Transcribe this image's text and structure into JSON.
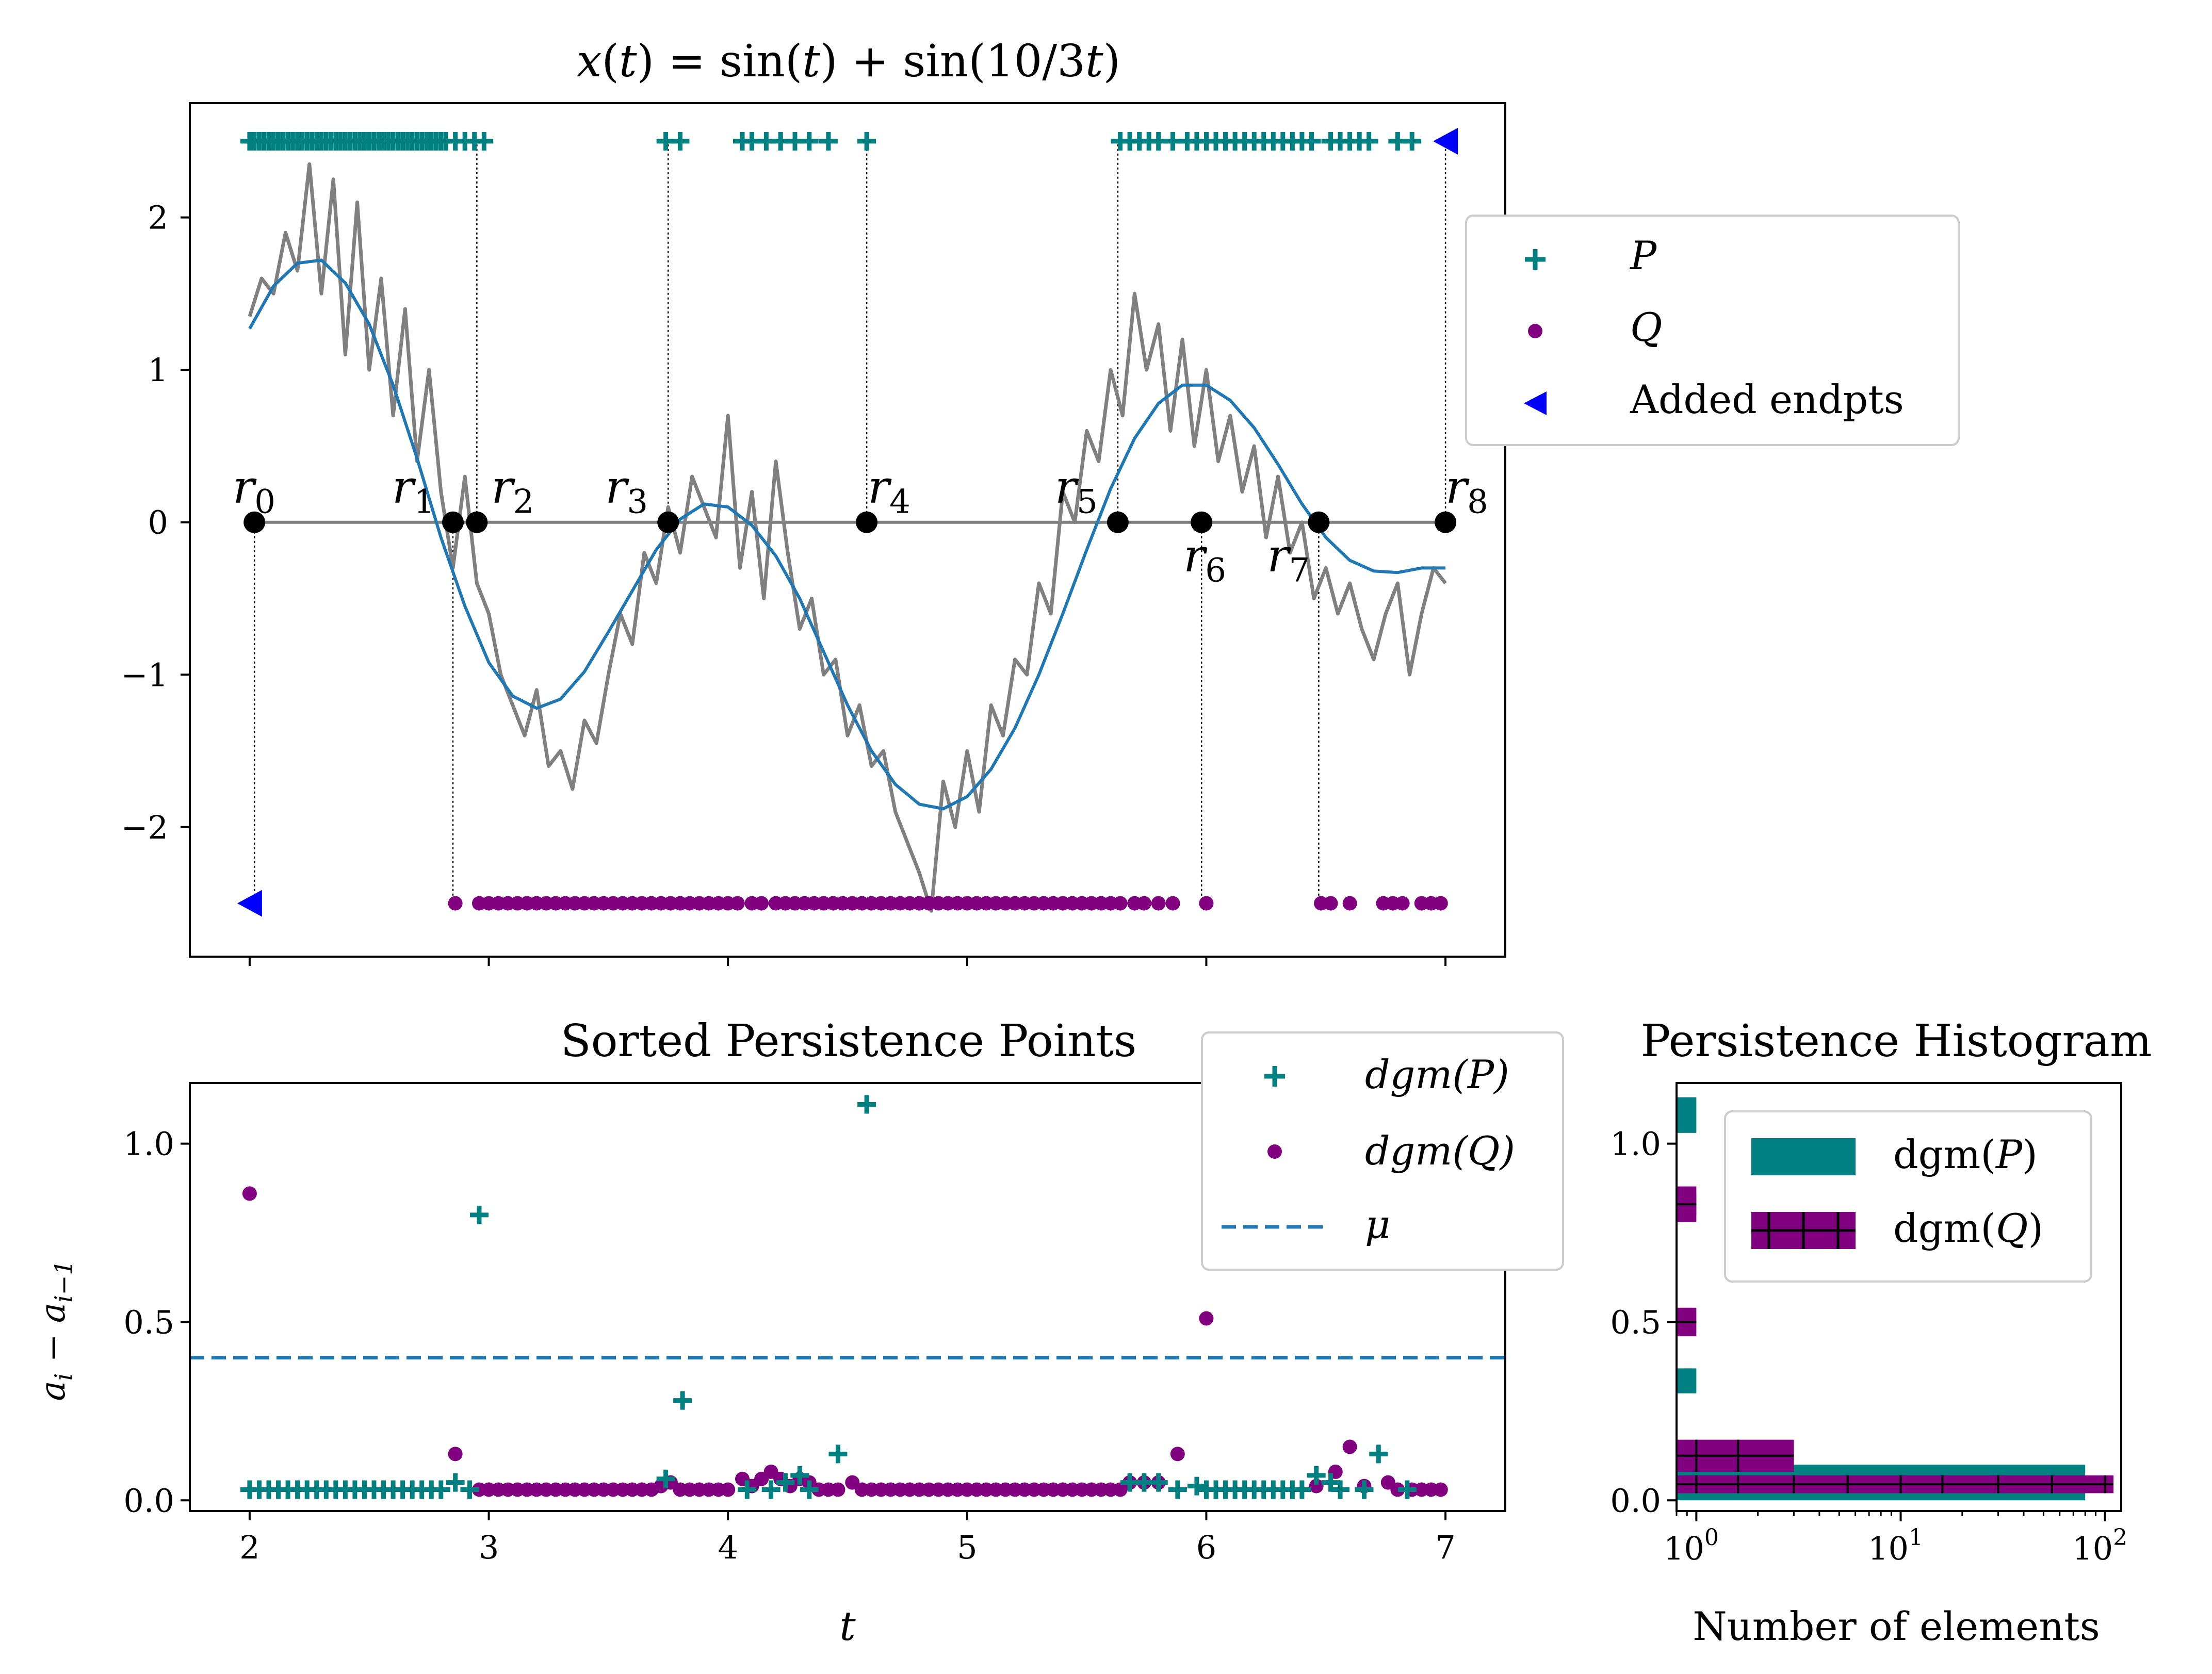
{
  "chart_data": [
    {
      "type": "line",
      "title": "x(t) = sin(t) + sin(10/3t)",
      "xlabel": "",
      "ylabel": "",
      "xlim": [
        1.75,
        7.25
      ],
      "ylim": [
        -2.85,
        2.75
      ],
      "x_ticks": [
        2,
        3,
        4,
        5,
        6,
        7
      ],
      "y_ticks": [
        -2,
        -1,
        0,
        1,
        2
      ],
      "y_tick_labels": [
        "−2",
        "−1",
        "0",
        "1",
        "2"
      ],
      "colors": {
        "smooth": "#1f77b4",
        "noisy": "#808080",
        "P": "#008080",
        "Q": "#800080",
        "endpts": "#0000ff",
        "r_points": "#000000"
      },
      "series": [
        {
          "name": "smooth",
          "x": [
            2.0,
            2.1,
            2.2,
            2.3,
            2.4,
            2.5,
            2.6,
            2.7,
            2.8,
            2.9,
            3.0,
            3.1,
            3.2,
            3.3,
            3.4,
            3.5,
            3.6,
            3.7,
            3.8,
            3.9,
            4.0,
            4.1,
            4.2,
            4.3,
            4.4,
            4.5,
            4.6,
            4.7,
            4.8,
            4.9,
            5.0,
            5.1,
            5.2,
            5.3,
            5.4,
            5.5,
            5.6,
            5.7,
            5.8,
            5.9,
            6.0,
            6.1,
            6.2,
            6.3,
            6.4,
            6.5,
            6.6,
            6.7,
            6.8,
            6.9,
            7.0
          ],
          "y": [
            1.27,
            1.55,
            1.7,
            1.72,
            1.57,
            1.3,
            0.9,
            0.42,
            -0.1,
            -0.55,
            -0.92,
            -1.14,
            -1.22,
            -1.16,
            -0.98,
            -0.72,
            -0.45,
            -0.18,
            0.02,
            0.12,
            0.1,
            -0.02,
            -0.22,
            -0.5,
            -0.85,
            -1.2,
            -1.5,
            -1.72,
            -1.85,
            -1.88,
            -1.8,
            -1.62,
            -1.35,
            -1.0,
            -0.6,
            -0.18,
            0.22,
            0.55,
            0.78,
            0.9,
            0.9,
            0.8,
            0.62,
            0.38,
            0.12,
            -0.1,
            -0.25,
            -0.32,
            -0.33,
            -0.3,
            -0.3
          ]
        },
        {
          "name": "noisy",
          "x": [
            2.0,
            2.05,
            2.1,
            2.15,
            2.2,
            2.25,
            2.3,
            2.35,
            2.4,
            2.45,
            2.5,
            2.55,
            2.6,
            2.65,
            2.7,
            2.75,
            2.8,
            2.85,
            2.9,
            2.95,
            3.0,
            3.05,
            3.1,
            3.15,
            3.2,
            3.25,
            3.3,
            3.35,
            3.4,
            3.45,
            3.5,
            3.55,
            3.6,
            3.65,
            3.7,
            3.75,
            3.8,
            3.85,
            3.9,
            3.95,
            4.0,
            4.05,
            4.1,
            4.15,
            4.2,
            4.25,
            4.3,
            4.35,
            4.4,
            4.45,
            4.5,
            4.55,
            4.6,
            4.65,
            4.7,
            4.75,
            4.8,
            4.85,
            4.9,
            4.95,
            5.0,
            5.05,
            5.1,
            5.15,
            5.2,
            5.25,
            5.3,
            5.35,
            5.4,
            5.45,
            5.5,
            5.55,
            5.6,
            5.65,
            5.7,
            5.75,
            5.8,
            5.85,
            5.9,
            5.95,
            6.0,
            6.05,
            6.1,
            6.15,
            6.2,
            6.25,
            6.3,
            6.35,
            6.4,
            6.45,
            6.5,
            6.55,
            6.6,
            6.65,
            6.7,
            6.75,
            6.8,
            6.85,
            6.9,
            6.95,
            7.0
          ],
          "y": [
            1.35,
            1.6,
            1.5,
            1.9,
            1.65,
            2.35,
            1.5,
            2.25,
            1.1,
            2.1,
            1.0,
            1.6,
            0.7,
            1.4,
            0.4,
            1.0,
            0.2,
            -0.3,
            0.3,
            -0.4,
            -0.6,
            -1.0,
            -1.2,
            -1.4,
            -1.1,
            -1.6,
            -1.5,
            -1.75,
            -1.3,
            -1.45,
            -1.0,
            -0.6,
            -0.8,
            -0.2,
            -0.4,
            0.1,
            -0.2,
            0.3,
            0.1,
            -0.1,
            0.7,
            -0.3,
            0.2,
            -0.5,
            0.4,
            -0.2,
            -0.7,
            -0.5,
            -1.0,
            -0.9,
            -1.4,
            -1.2,
            -1.6,
            -1.5,
            -1.9,
            -2.1,
            -2.3,
            -2.55,
            -1.7,
            -2.0,
            -1.5,
            -1.9,
            -1.2,
            -1.4,
            -0.9,
            -1.0,
            -0.4,
            -0.6,
            0.2,
            0.0,
            0.6,
            0.4,
            1.0,
            0.7,
            1.5,
            1.0,
            1.3,
            0.6,
            1.2,
            0.5,
            1.0,
            0.4,
            0.7,
            0.2,
            0.5,
            -0.1,
            0.3,
            -0.2,
            0.0,
            -0.5,
            -0.3,
            -0.6,
            -0.4,
            -0.7,
            -0.9,
            -0.6,
            -0.4,
            -1.0,
            -0.6,
            -0.3,
            -0.4
          ]
        }
      ],
      "P_x": [
        2.0,
        2.02,
        2.04,
        2.06,
        2.08,
        2.1,
        2.12,
        2.14,
        2.16,
        2.18,
        2.2,
        2.22,
        2.24,
        2.26,
        2.28,
        2.3,
        2.32,
        2.34,
        2.36,
        2.38,
        2.4,
        2.42,
        2.44,
        2.46,
        2.48,
        2.5,
        2.52,
        2.54,
        2.56,
        2.58,
        2.6,
        2.62,
        2.64,
        2.66,
        2.68,
        2.7,
        2.72,
        2.74,
        2.76,
        2.78,
        2.8,
        2.82,
        2.86,
        2.9,
        2.94,
        2.98,
        3.74,
        3.8,
        4.06,
        4.1,
        4.16,
        4.22,
        4.28,
        4.34,
        4.42,
        4.58,
        5.64,
        5.68,
        5.72,
        5.76,
        5.8,
        5.86,
        5.92,
        5.96,
        6.0,
        6.04,
        6.08,
        6.12,
        6.16,
        6.2,
        6.24,
        6.28,
        6.32,
        6.36,
        6.4,
        6.44,
        6.52,
        6.56,
        6.6,
        6.64,
        6.68,
        6.8,
        6.86
      ],
      "P_level": 2.5,
      "Q_x": [
        2.86,
        2.96,
        3.0,
        3.04,
        3.08,
        3.12,
        3.16,
        3.2,
        3.24,
        3.28,
        3.32,
        3.36,
        3.4,
        3.44,
        3.48,
        3.52,
        3.56,
        3.6,
        3.64,
        3.68,
        3.72,
        3.76,
        3.8,
        3.84,
        3.88,
        3.92,
        3.96,
        4.0,
        4.04,
        4.1,
        4.14,
        4.2,
        4.24,
        4.28,
        4.32,
        4.36,
        4.4,
        4.44,
        4.48,
        4.52,
        4.56,
        4.6,
        4.64,
        4.68,
        4.72,
        4.76,
        4.8,
        4.84,
        4.88,
        4.92,
        4.96,
        5.0,
        5.04,
        5.08,
        5.12,
        5.16,
        5.2,
        5.24,
        5.28,
        5.32,
        5.36,
        5.4,
        5.44,
        5.48,
        5.52,
        5.56,
        5.6,
        5.64,
        5.7,
        5.74,
        5.8,
        5.86,
        6.0,
        6.48,
        6.52,
        6.6,
        6.74,
        6.78,
        6.82,
        6.9,
        6.94,
        6.98
      ],
      "Q_level": -2.5,
      "endpts": [
        [
          2.0,
          -2.5
        ],
        [
          7.0,
          2.5
        ]
      ],
      "r_points": {
        "x": [
          2.02,
          2.85,
          2.95,
          3.75,
          4.58,
          5.63,
          5.98,
          6.47,
          7.0
        ],
        "labels": [
          "r0",
          "r1",
          "r2",
          "r3",
          "r4",
          "r5",
          "r6",
          "r7",
          "r8"
        ]
      },
      "legend": {
        "placement": "outside-right",
        "entries": [
          "P",
          "Q",
          "Added endpts"
        ]
      }
    },
    {
      "type": "scatter",
      "title": "Sorted Persistence Points",
      "xlabel": "t",
      "ylabel": "a_i − a_{i−1}",
      "xlim": [
        1.75,
        7.25
      ],
      "ylim": [
        -0.03,
        1.17
      ],
      "x_ticks": [
        2,
        3,
        4,
        5,
        6,
        7
      ],
      "y_ticks": [
        0.0,
        0.5,
        1.0
      ],
      "y_tick_labels": [
        "0.0",
        "0.5",
        "1.0"
      ],
      "mu": 0.4,
      "dgmP": {
        "x": [
          2.0,
          2.04,
          2.08,
          2.12,
          2.16,
          2.2,
          2.24,
          2.28,
          2.32,
          2.36,
          2.4,
          2.44,
          2.48,
          2.52,
          2.56,
          2.6,
          2.64,
          2.68,
          2.72,
          2.76,
          2.8,
          2.86,
          2.92,
          2.96,
          3.74,
          3.81,
          4.08,
          4.18,
          4.24,
          4.3,
          4.34,
          4.46,
          4.58,
          5.68,
          5.74,
          5.8,
          5.88,
          5.96,
          6.0,
          6.04,
          6.08,
          6.12,
          6.16,
          6.2,
          6.24,
          6.28,
          6.32,
          6.36,
          6.4,
          6.46,
          6.52,
          6.56,
          6.66,
          6.72,
          6.84
        ],
        "y": [
          0.03,
          0.03,
          0.03,
          0.03,
          0.03,
          0.03,
          0.03,
          0.03,
          0.03,
          0.03,
          0.03,
          0.03,
          0.03,
          0.03,
          0.03,
          0.03,
          0.03,
          0.03,
          0.03,
          0.03,
          0.03,
          0.05,
          0.03,
          0.8,
          0.06,
          0.28,
          0.03,
          0.03,
          0.05,
          0.07,
          0.03,
          0.13,
          1.11,
          0.05,
          0.05,
          0.05,
          0.03,
          0.04,
          0.03,
          0.03,
          0.03,
          0.03,
          0.03,
          0.03,
          0.03,
          0.03,
          0.03,
          0.03,
          0.03,
          0.07,
          0.05,
          0.03,
          0.03,
          0.13,
          0.03
        ]
      },
      "dgmQ": {
        "x": [
          2.0,
          2.86,
          2.96,
          3.0,
          3.04,
          3.08,
          3.12,
          3.16,
          3.2,
          3.24,
          3.28,
          3.32,
          3.36,
          3.4,
          3.44,
          3.48,
          3.52,
          3.56,
          3.6,
          3.64,
          3.68,
          3.72,
          3.76,
          3.8,
          3.84,
          3.88,
          3.92,
          3.96,
          4.0,
          4.06,
          4.1,
          4.14,
          4.18,
          4.22,
          4.26,
          4.3,
          4.34,
          4.38,
          4.42,
          4.46,
          4.52,
          4.56,
          4.6,
          4.64,
          4.68,
          4.72,
          4.76,
          4.8,
          4.84,
          4.88,
          4.92,
          4.96,
          5.0,
          5.04,
          5.08,
          5.12,
          5.16,
          5.2,
          5.24,
          5.28,
          5.32,
          5.36,
          5.4,
          5.44,
          5.48,
          5.52,
          5.56,
          5.6,
          5.64,
          5.68,
          5.74,
          5.8,
          5.88,
          6.0,
          6.46,
          6.54,
          6.6,
          6.66,
          6.76,
          6.8,
          6.86,
          6.9,
          6.94,
          6.98
        ],
        "y": [
          0.86,
          0.13,
          0.03,
          0.03,
          0.03,
          0.03,
          0.03,
          0.03,
          0.03,
          0.03,
          0.03,
          0.03,
          0.03,
          0.03,
          0.03,
          0.03,
          0.03,
          0.03,
          0.03,
          0.03,
          0.03,
          0.04,
          0.05,
          0.03,
          0.03,
          0.03,
          0.03,
          0.03,
          0.03,
          0.06,
          0.04,
          0.06,
          0.08,
          0.06,
          0.04,
          0.06,
          0.05,
          0.03,
          0.03,
          0.03,
          0.05,
          0.03,
          0.03,
          0.03,
          0.03,
          0.03,
          0.03,
          0.03,
          0.03,
          0.03,
          0.03,
          0.03,
          0.03,
          0.03,
          0.03,
          0.03,
          0.03,
          0.03,
          0.03,
          0.03,
          0.03,
          0.03,
          0.03,
          0.03,
          0.03,
          0.03,
          0.03,
          0.03,
          0.03,
          0.05,
          0.05,
          0.05,
          0.13,
          0.51,
          0.04,
          0.08,
          0.15,
          0.04,
          0.05,
          0.03,
          0.03,
          0.03,
          0.03,
          0.03
        ]
      },
      "legend": {
        "placement": "upper-right",
        "entries": [
          "dgm(P)",
          "dgm(Q)",
          "μ"
        ]
      }
    },
    {
      "type": "bar",
      "title": "Persistence Histogram",
      "xlabel": "Number of elements",
      "ylabel": "",
      "x_scale": "log",
      "xlim": [
        0.8,
        120
      ],
      "ylim": [
        -0.03,
        1.17
      ],
      "y_ticks": [
        0.0,
        0.5,
        1.0
      ],
      "y_tick_labels": [
        "0.0",
        "0.5",
        "1.0"
      ],
      "x_tick_labels": [
        "10",
        "10",
        "10"
      ],
      "x_tick_exponents": [
        "0",
        "1",
        "2"
      ],
      "x_tick_values": [
        1,
        10,
        100
      ],
      "dgmP": {
        "bin_lo": [
          0.0,
          0.1,
          0.3,
          0.8,
          1.03
        ],
        "bin_hi": [
          0.1,
          0.13,
          0.37,
          0.86,
          1.13
        ],
        "counts": [
          80,
          3,
          1,
          1,
          1
        ]
      },
      "dgmQ": {
        "bin_lo": [
          0.02,
          0.08,
          0.46,
          0.78
        ],
        "bin_hi": [
          0.07,
          0.17,
          0.54,
          0.88
        ],
        "counts": [
          110,
          3,
          1,
          1
        ]
      },
      "legend": {
        "placement": "upper-right",
        "entries": [
          "dgm(P)",
          "dgm(Q)"
        ]
      }
    }
  ]
}
